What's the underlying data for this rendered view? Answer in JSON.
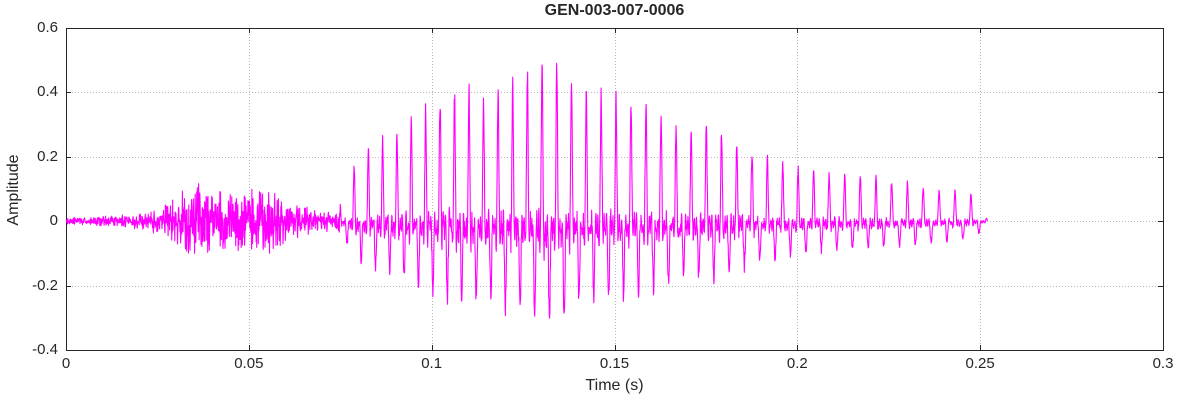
{
  "chart_data": {
    "type": "line",
    "title": "GEN-003-007-0006",
    "xlabel": "Time (s)",
    "ylabel": "Amplitude",
    "xlim": [
      0,
      0.3
    ],
    "ylim": [
      -0.4,
      0.6
    ],
    "xticks": [
      0,
      0.05,
      0.1,
      0.15,
      0.2,
      0.25,
      0.3
    ],
    "yticks": [
      -0.4,
      -0.2,
      0,
      0.2,
      0.4,
      0.6
    ],
    "grid": true,
    "legend": "none",
    "colors": {
      "line": "#FF00FF",
      "axis": "#262626",
      "grid": "#b8b8b8"
    },
    "series_name": "audio-waveform",
    "signal": {
      "sample_rate": 12000,
      "duration": 0.252,
      "voiced_start": 0.075,
      "f0_start": 258,
      "f0_end": 228,
      "neg_ratio": 0.55,
      "noise_seed": 7,
      "harmonic_weights": [
        1,
        0.95,
        0.85,
        0.7,
        0.5,
        0.3
      ],
      "envelope": [
        [
          0,
          0.012
        ],
        [
          0.008,
          0.015
        ],
        [
          0.015,
          0.02
        ],
        [
          0.022,
          0.03
        ],
        [
          0.028,
          0.06
        ],
        [
          0.033,
          0.11
        ],
        [
          0.036,
          0.13
        ],
        [
          0.04,
          0.1
        ],
        [
          0.044,
          0.09
        ],
        [
          0.048,
          0.11
        ],
        [
          0.052,
          0.12
        ],
        [
          0.056,
          0.1
        ],
        [
          0.06,
          0.07
        ],
        [
          0.065,
          0.05
        ],
        [
          0.07,
          0.035
        ],
        [
          0.074,
          0.03
        ],
        [
          0.076,
          0.1
        ],
        [
          0.08,
          0.22
        ],
        [
          0.085,
          0.26
        ],
        [
          0.09,
          0.3
        ],
        [
          0.095,
          0.34
        ],
        [
          0.1,
          0.4
        ],
        [
          0.105,
          0.44
        ],
        [
          0.11,
          0.45
        ],
        [
          0.115,
          0.42
        ],
        [
          0.12,
          0.47
        ],
        [
          0.125,
          0.5
        ],
        [
          0.131,
          0.57
        ],
        [
          0.136,
          0.51
        ],
        [
          0.14,
          0.46
        ],
        [
          0.145,
          0.43
        ],
        [
          0.15,
          0.42
        ],
        [
          0.155,
          0.4
        ],
        [
          0.16,
          0.39
        ],
        [
          0.165,
          0.35
        ],
        [
          0.17,
          0.3
        ],
        [
          0.175,
          0.32
        ],
        [
          0.18,
          0.3
        ],
        [
          0.185,
          0.26
        ],
        [
          0.19,
          0.22
        ],
        [
          0.195,
          0.2
        ],
        [
          0.2,
          0.18
        ],
        [
          0.205,
          0.17
        ],
        [
          0.21,
          0.16
        ],
        [
          0.22,
          0.15
        ],
        [
          0.23,
          0.13
        ],
        [
          0.24,
          0.11
        ],
        [
          0.248,
          0.09
        ],
        [
          0.251,
          0.05
        ],
        [
          0.252,
          0
        ]
      ]
    }
  }
}
